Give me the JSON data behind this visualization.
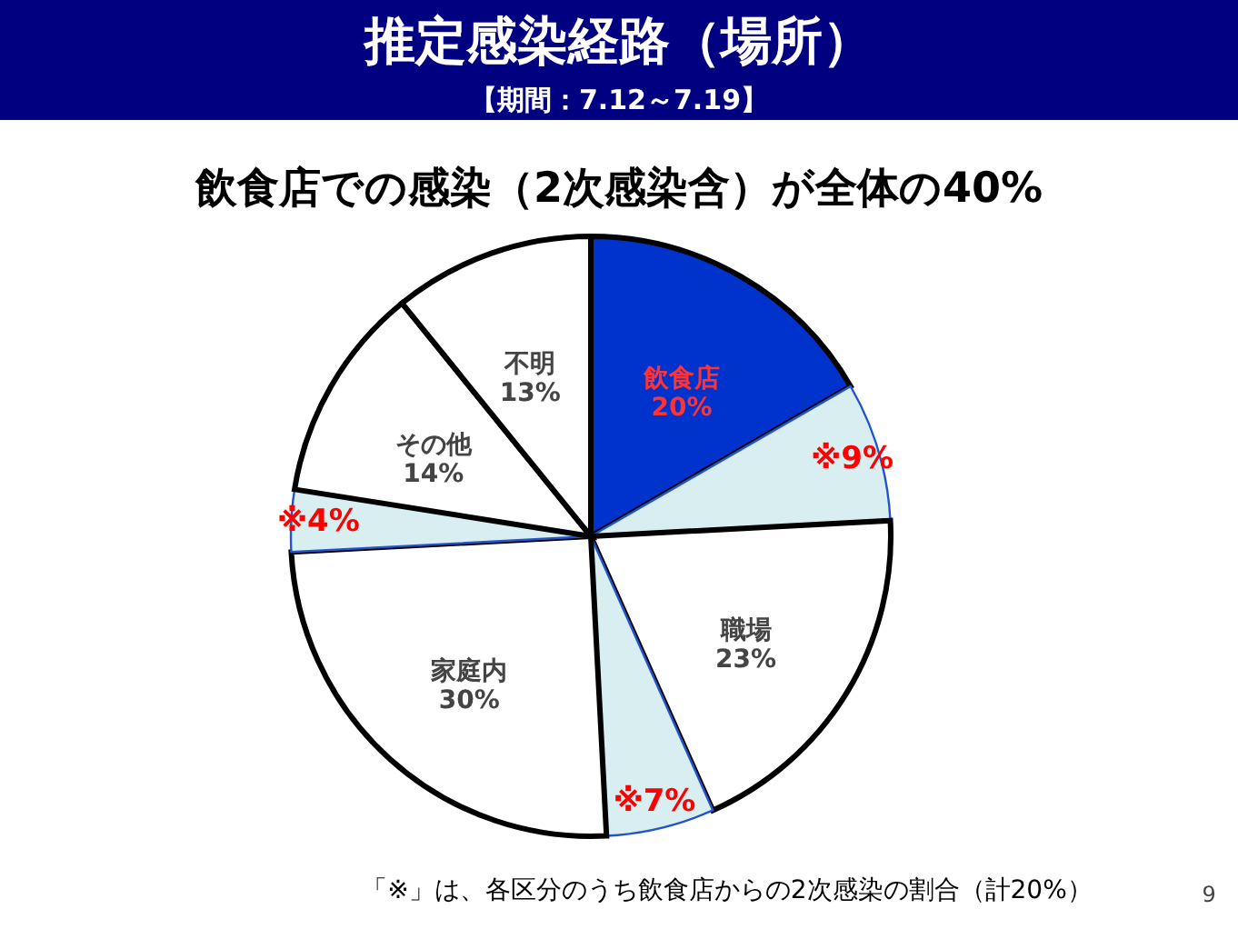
{
  "chart_data": {
    "type": "pie",
    "title": "推定感染経路（場所）",
    "subtitle": "【期間：7.12～7.19】",
    "annotations": [
      "飲食店での感染（2次感染含）が全体の40%",
      "「※」は、各区分のうち飲食店からの2次感染の割合（計20%）",
      "9"
    ],
    "categories": [
      "飲食店",
      null,
      "職場",
      null,
      "家庭内",
      null,
      "その他",
      "不明"
    ],
    "values": [
      20,
      9,
      23,
      7,
      30,
      4,
      14,
      13
    ],
    "value_labels": [
      "20%",
      "※9%",
      "23%",
      "※7%",
      "30%",
      "※4%",
      "14%",
      "13%"
    ],
    "colors": [
      "#0033cc",
      "#d9eef0",
      "#ffffff",
      "#d9eef0",
      "#ffffff",
      "#d9eef0",
      "#ffffff",
      "#ffffff"
    ]
  }
}
